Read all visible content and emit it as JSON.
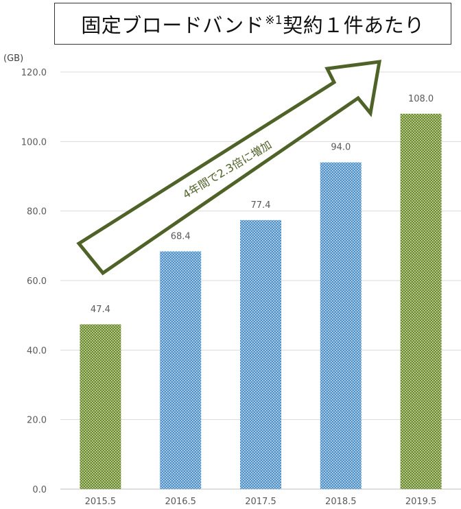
{
  "title": {
    "main": "固定ブロードバンド",
    "note": "※1",
    "tail": "契約１件あたり"
  },
  "colors": {
    "highlight": "#6b8a2e",
    "normal": "#4e91c9",
    "arrow": "#4f6228",
    "grid": "#d9d9d9",
    "axis_text": "#595959"
  },
  "annotation": "4年間で2.3倍に増加",
  "chart_data": {
    "type": "bar",
    "title": "固定ブロードバンド※1契約１件あたり",
    "unit_label": "(GB)",
    "xlabel": "",
    "ylabel": "",
    "categories": [
      "2015.5",
      "2016.5",
      "2017.5",
      "2018.5",
      "2019.5"
    ],
    "values": [
      47.4,
      68.4,
      77.4,
      94.0,
      108.0
    ],
    "value_labels": [
      "47.4",
      "68.4",
      "77.4",
      "94.0",
      "108.0"
    ],
    "highlighted": [
      true,
      false,
      false,
      false,
      true
    ],
    "ylim": [
      0,
      120
    ],
    "yticks": [
      "0.0",
      "20.0",
      "40.0",
      "60.0",
      "80.0",
      "100.0",
      "120.0"
    ],
    "grid": true,
    "legend": "none"
  }
}
